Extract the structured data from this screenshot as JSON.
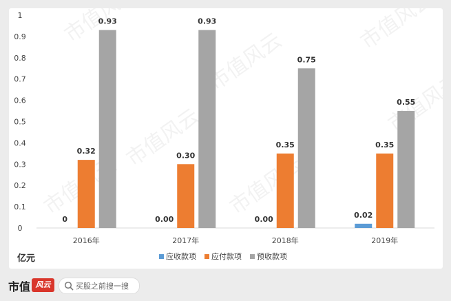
{
  "chart_data": {
    "type": "bar",
    "categories": [
      "2016年",
      "2017年",
      "2018年",
      "2019年"
    ],
    "series": [
      {
        "name": "应收款项",
        "color": "#5b9bd5",
        "values": [
          0,
          0.0,
          0.0,
          0.02
        ],
        "labels": [
          "0",
          "0.00",
          "0.00",
          "0.02"
        ]
      },
      {
        "name": "应付款项",
        "color": "#ed7d31",
        "values": [
          0.32,
          0.3,
          0.35,
          0.35
        ],
        "labels": [
          "0.32",
          "0.30",
          "0.35",
          "0.35"
        ]
      },
      {
        "name": "预收款项",
        "color": "#a5a5a5",
        "values": [
          0.93,
          0.93,
          0.75,
          0.55
        ],
        "labels": [
          "0.93",
          "0.93",
          "0.75",
          "0.55"
        ]
      }
    ],
    "y_ticks": [
      "0",
      "0.1",
      "0.2",
      "0.3",
      "0.4",
      "0.5",
      "0.6",
      "0.7",
      "0.8",
      "0.9",
      "1"
    ],
    "ylim": [
      0,
      1
    ],
    "ylabel": "亿元",
    "legend_position": "bottom",
    "grid": false
  },
  "watermark": "市值风云",
  "footer": {
    "brand": "市值",
    "brand_mark": "风云",
    "search_placeholder": "买股之前搜一搜"
  }
}
